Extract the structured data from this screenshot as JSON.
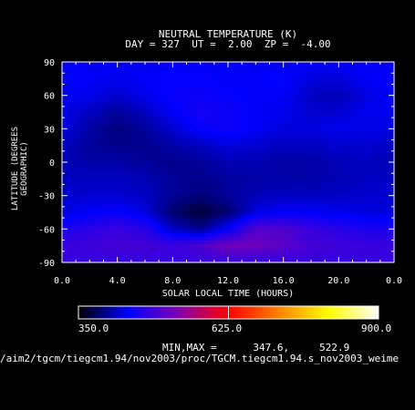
{
  "figure": {
    "title_line1": "NEUTRAL TEMPERATURE (K)",
    "title_line2": "DAY = 327  UT =  2.00  ZP =  -4.00",
    "minmax_text": "MIN,MAX =      347.6,     522.9",
    "file_path": "/aim2/tgcm/tiegcm1.94/nov2003/proc/TGCM.tiegcm1.94.s_nov2003_weime"
  },
  "colorbar": {
    "min_label": "350.0",
    "mid_label": "625.0",
    "max_label": "900.0",
    "range": [
      350.0,
      900.0
    ],
    "colormap": [
      "#000000",
      "#0000ff",
      "#8000b0",
      "#ff0000",
      "#ff8000",
      "#ffff00",
      "#ffffff"
    ]
  },
  "chart_data": {
    "type": "heatmap",
    "title": "NEUTRAL TEMPERATURE (K)",
    "subtitle": "DAY = 327  UT =  2.00  ZP =  -4.00",
    "xlabel": "SOLAR LOCAL TIME (HOURS)",
    "ylabel": "LATITUDE (DEGREES GEOGRAPHIC)",
    "xlim": [
      0.0,
      24.0
    ],
    "ylim": [
      -90,
      90
    ],
    "xticks": [
      "0.0",
      "4.0",
      "8.0",
      "12.0",
      "16.0",
      "20.0",
      "0.0"
    ],
    "yticks": [
      "90",
      "60",
      "30",
      "0",
      "-30",
      "-60",
      "-90"
    ],
    "x": [
      0,
      2,
      4,
      6,
      8,
      10,
      12,
      14,
      16,
      18,
      20,
      22,
      24
    ],
    "y": [
      90,
      75,
      60,
      45,
      30,
      15,
      0,
      -15,
      -30,
      -45,
      -60,
      -75,
      -90
    ],
    "z": [
      [
        440,
        440,
        440,
        440,
        440,
        440,
        440,
        440,
        440,
        440,
        440,
        440,
        440
      ],
      [
        445,
        440,
        435,
        440,
        445,
        445,
        440,
        440,
        445,
        430,
        428,
        440,
        445
      ],
      [
        440,
        435,
        425,
        435,
        445,
        450,
        445,
        440,
        440,
        420,
        415,
        430,
        440
      ],
      [
        435,
        420,
        405,
        420,
        440,
        455,
        450,
        440,
        435,
        425,
        425,
        435,
        435
      ],
      [
        430,
        410,
        395,
        405,
        425,
        445,
        450,
        440,
        430,
        430,
        435,
        435,
        430
      ],
      [
        420,
        405,
        400,
        400,
        410,
        420,
        430,
        425,
        420,
        420,
        425,
        425,
        420
      ],
      [
        415,
        410,
        410,
        405,
        400,
        405,
        415,
        415,
        410,
        410,
        415,
        420,
        415
      ],
      [
        420,
        420,
        420,
        415,
        405,
        400,
        405,
        410,
        410,
        410,
        415,
        420,
        420
      ],
      [
        425,
        425,
        425,
        420,
        405,
        395,
        405,
        415,
        420,
        420,
        420,
        425,
        425
      ],
      [
        430,
        440,
        445,
        430,
        390,
        370,
        390,
        430,
        440,
        440,
        435,
        430,
        430
      ],
      [
        460,
        470,
        480,
        470,
        420,
        400,
        440,
        500,
        500,
        480,
        470,
        460,
        460
      ],
      [
        480,
        485,
        490,
        490,
        480,
        495,
        520,
        520,
        505,
        490,
        485,
        480,
        480
      ],
      [
        480,
        480,
        480,
        480,
        480,
        480,
        480,
        480,
        480,
        480,
        480,
        480,
        480
      ]
    ]
  }
}
